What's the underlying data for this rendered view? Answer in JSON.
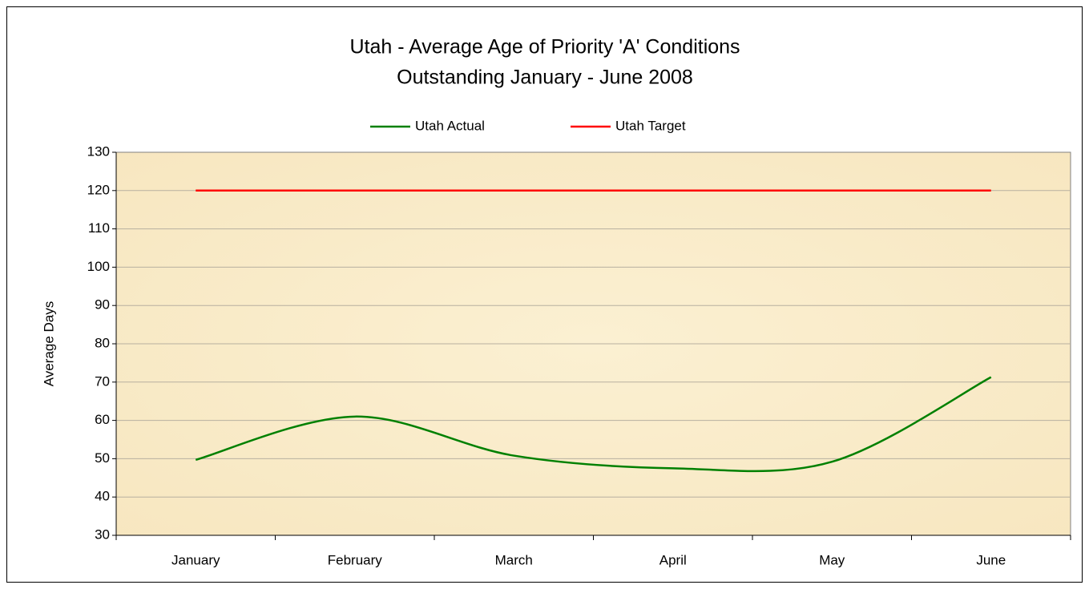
{
  "chart_data": {
    "type": "line",
    "title": [
      "Utah - Average Age of Priority 'A' Conditions",
      "Outstanding January - June 2008"
    ],
    "y_label": "Average Days",
    "categories": [
      "January",
      "February",
      "March",
      "April",
      "May",
      "June"
    ],
    "series": [
      {
        "name": "Utah Actual",
        "color": "#008000",
        "values": [
          49.7,
          61.0,
          50.8,
          47.5,
          49.2,
          71.3
        ]
      },
      {
        "name": "Utah Target",
        "color": "#ff0000",
        "values": [
          120,
          120,
          120,
          120,
          120,
          120
        ]
      }
    ],
    "ylim": [
      30,
      130
    ],
    "yticks": [
      30,
      40,
      50,
      60,
      70,
      80,
      90,
      100,
      110,
      120,
      130
    ],
    "grid": true,
    "smooth": true,
    "legend": "top"
  }
}
